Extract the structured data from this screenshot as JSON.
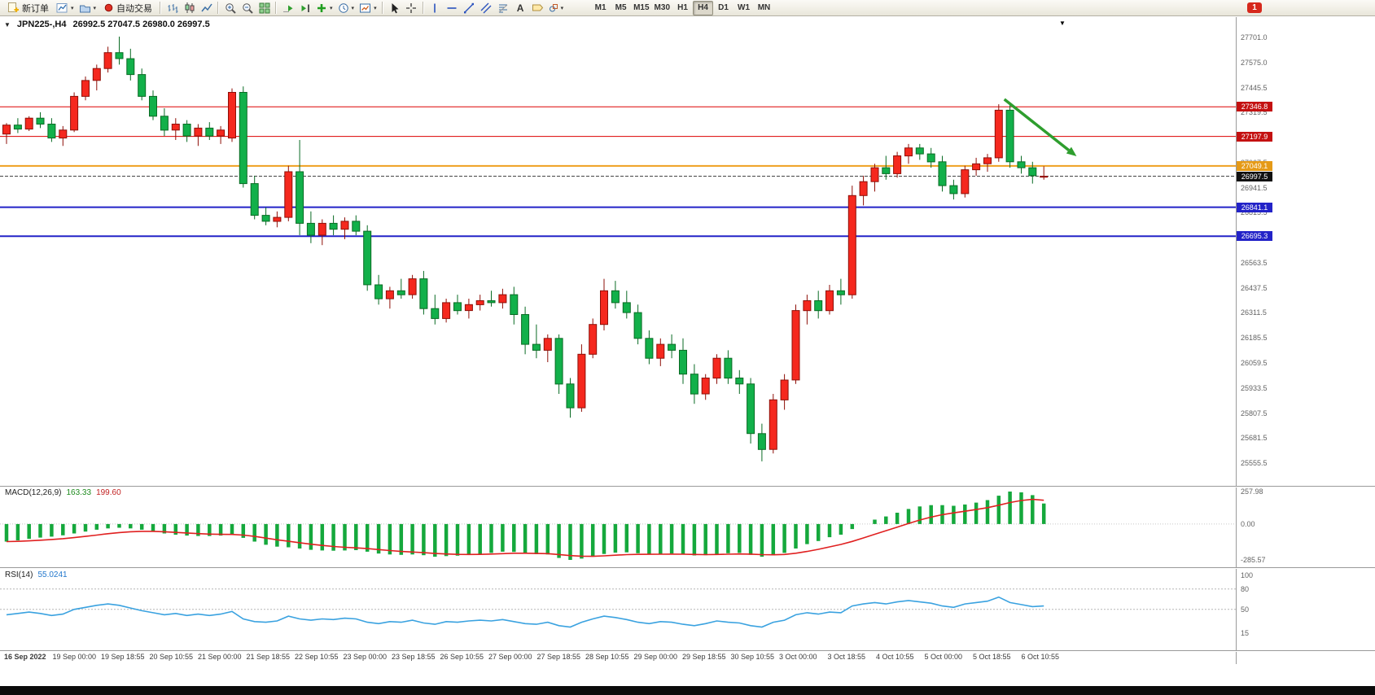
{
  "toolbar": {
    "new_order_label": "新订单",
    "auto_trading_label": "自动交易",
    "timeframes": [
      "M1",
      "M5",
      "M15",
      "M30",
      "H1",
      "H4",
      "D1",
      "W1",
      "MN"
    ],
    "active_timeframe": "H4",
    "notification_count": "1",
    "icon_names": [
      "new-order-icon",
      "new-chart-icon",
      "profiles-icon",
      "auto-trading-icon",
      "bar-chart-icon",
      "candlestick-chart-icon",
      "line-chart-icon",
      "zoom-in-icon",
      "zoom-out-icon",
      "tile-windows-icon",
      "auto-scroll-icon",
      "chart-shift-icon",
      "indicators-icon",
      "periods-icon",
      "templates-icon",
      "cursor-icon",
      "crosshair-icon",
      "vertical-line-icon",
      "horizontal-line-icon",
      "trendline-icon",
      "channel-icon",
      "fibonacci-icon",
      "text-icon",
      "label-icon",
      "shapes-icon",
      "notification-icon"
    ]
  },
  "chart": {
    "symbol": "JPN225-,H4",
    "ohlc": "26992.5 27047.5 26980.0 26997.5"
  },
  "chart_data": {
    "type": "candlestick",
    "symbol": "JPN225-",
    "timeframe": "H4",
    "ylim": [
      25555.5,
      27701.0
    ],
    "y_tick_labels": [
      "27701.0",
      "27575.0",
      "27445.5",
      "27319.5",
      "27193.5",
      "27067.5",
      "26941.5",
      "26815.5",
      "26689.5",
      "26563.5",
      "26437.5",
      "26311.5",
      "26185.5",
      "26059.5",
      "25933.5",
      "25807.5",
      "25681.5",
      "25555.5"
    ],
    "x_tick_labels": [
      "16 Sep 2022",
      "19 Sep 00:00",
      "19 Sep 18:55",
      "20 Sep 10:55",
      "21 Sep 00:00",
      "21 Sep 18:55",
      "22 Sep 10:55",
      "23 Sep 00:00",
      "23 Sep 18:55",
      "26 Sep 10:55",
      "27 Sep 00:00",
      "27 Sep 18:55",
      "28 Sep 10:55",
      "29 Sep 00:00",
      "29 Sep 18:55",
      "30 Sep 10:55",
      "3 Oct 00:00",
      "3 Oct 18:55",
      "4 Oct 10:55",
      "5 Oct 00:00",
      "5 Oct 18:55",
      "6 Oct 10:55"
    ],
    "candles": [
      [
        27210,
        27265,
        27160,
        27255
      ],
      [
        27255,
        27290,
        27215,
        27235
      ],
      [
        27235,
        27300,
        27225,
        27290
      ],
      [
        27290,
        27320,
        27240,
        27260
      ],
      [
        27260,
        27290,
        27170,
        27190
      ],
      [
        27190,
        27250,
        27150,
        27230
      ],
      [
        27230,
        27420,
        27220,
        27400
      ],
      [
        27400,
        27500,
        27380,
        27480
      ],
      [
        27480,
        27560,
        27430,
        27540
      ],
      [
        27540,
        27650,
        27520,
        27620
      ],
      [
        27620,
        27701,
        27560,
        27590
      ],
      [
        27590,
        27640,
        27480,
        27510
      ],
      [
        27510,
        27540,
        27380,
        27400
      ],
      [
        27400,
        27430,
        27280,
        27300
      ],
      [
        27300,
        27340,
        27200,
        27230
      ],
      [
        27230,
        27290,
        27180,
        27260
      ],
      [
        27260,
        27280,
        27170,
        27200
      ],
      [
        27200,
        27260,
        27150,
        27240
      ],
      [
        27240,
        27270,
        27180,
        27200
      ],
      [
        27200,
        27250,
        27160,
        27230
      ],
      [
        27190,
        27440,
        27170,
        27420
      ],
      [
        27420,
        27450,
        26940,
        26960
      ],
      [
        26960,
        27000,
        26780,
        26800
      ],
      [
        26800,
        26840,
        26750,
        26770
      ],
      [
        26770,
        26820,
        26740,
        26790
      ],
      [
        26790,
        27050,
        26770,
        27020
      ],
      [
        27020,
        27180,
        26700,
        26760
      ],
      [
        26760,
        26820,
        26660,
        26700
      ],
      [
        26700,
        26780,
        26650,
        26760
      ],
      [
        26760,
        26800,
        26700,
        26730
      ],
      [
        26730,
        26790,
        26680,
        26770
      ],
      [
        26770,
        26800,
        26700,
        26720
      ],
      [
        26720,
        26750,
        26420,
        26450
      ],
      [
        26450,
        26500,
        26350,
        26380
      ],
      [
        26380,
        26440,
        26330,
        26420
      ],
      [
        26420,
        26480,
        26380,
        26400
      ],
      [
        26400,
        26500,
        26380,
        26480
      ],
      [
        26480,
        26520,
        26300,
        26330
      ],
      [
        26330,
        26400,
        26250,
        26280
      ],
      [
        26280,
        26380,
        26260,
        26360
      ],
      [
        26360,
        26400,
        26300,
        26320
      ],
      [
        26320,
        26380,
        26280,
        26350
      ],
      [
        26350,
        26400,
        26320,
        26370
      ],
      [
        26370,
        26420,
        26340,
        26360
      ],
      [
        26360,
        26430,
        26330,
        26400
      ],
      [
        26400,
        26440,
        26250,
        26300
      ],
      [
        26300,
        26340,
        26100,
        26150
      ],
      [
        26150,
        26250,
        26080,
        26120
      ],
      [
        26120,
        26200,
        26060,
        26180
      ],
      [
        26180,
        26200,
        25900,
        25950
      ],
      [
        25950,
        25980,
        25780,
        25830
      ],
      [
        25830,
        26150,
        25810,
        26100
      ],
      [
        26100,
        26280,
        26080,
        26250
      ],
      [
        26250,
        26480,
        26220,
        26420
      ],
      [
        26420,
        26470,
        26330,
        26360
      ],
      [
        26360,
        26420,
        26280,
        26310
      ],
      [
        26310,
        26350,
        26150,
        26180
      ],
      [
        26180,
        26220,
        26050,
        26080
      ],
      [
        26080,
        26180,
        26040,
        26150
      ],
      [
        26150,
        26200,
        26080,
        26120
      ],
      [
        26120,
        26180,
        25950,
        26000
      ],
      [
        26000,
        26050,
        25850,
        25900
      ],
      [
        25900,
        26000,
        25870,
        25980
      ],
      [
        25980,
        26100,
        25950,
        26080
      ],
      [
        26080,
        26120,
        25950,
        25980
      ],
      [
        25980,
        26020,
        25900,
        25950
      ],
      [
        25950,
        25980,
        25650,
        25700
      ],
      [
        25700,
        25750,
        25560,
        25620
      ],
      [
        25620,
        25900,
        25600,
        25870
      ],
      [
        25870,
        26000,
        25820,
        25970
      ],
      [
        25970,
        26350,
        25950,
        26320
      ],
      [
        26320,
        26400,
        26250,
        26370
      ],
      [
        26370,
        26420,
        26280,
        26320
      ],
      [
        26320,
        26450,
        26300,
        26420
      ],
      [
        26420,
        26480,
        26350,
        26400
      ],
      [
        26400,
        26950,
        26380,
        26900
      ],
      [
        26900,
        27000,
        26850,
        26970
      ],
      [
        26970,
        27060,
        26920,
        27040
      ],
      [
        27040,
        27100,
        26980,
        27010
      ],
      [
        27010,
        27120,
        26990,
        27100
      ],
      [
        27100,
        27160,
        27060,
        27140
      ],
      [
        27140,
        27160,
        27080,
        27110
      ],
      [
        27110,
        27140,
        27040,
        27070
      ],
      [
        27070,
        27100,
        26920,
        26950
      ],
      [
        26950,
        26980,
        26880,
        26910
      ],
      [
        26910,
        27050,
        26890,
        27030
      ],
      [
        27030,
        27090,
        27000,
        27060
      ],
      [
        27060,
        27110,
        27020,
        27090
      ],
      [
        27090,
        27360,
        27070,
        27330
      ],
      [
        27330,
        27370,
        27040,
        27070
      ],
      [
        27070,
        27100,
        27010,
        27040
      ],
      [
        27040,
        27070,
        26960,
        27000
      ],
      [
        26992.5,
        27047.5,
        26980.0,
        26997.5
      ]
    ],
    "levels": [
      {
        "label": "27346.8",
        "price": 27346.8,
        "color": "#dd0000",
        "tag_bg": "#c41111",
        "width": 1
      },
      {
        "label": "27197.9",
        "price": 27197.9,
        "color": "#dd0000",
        "tag_bg": "#c41111",
        "width": 1
      },
      {
        "label": "27049.1",
        "price": 27049.1,
        "color": "#efa021",
        "tag_bg": "#e59a17",
        "width": 2
      },
      {
        "label": "26841.1",
        "price": 26841.1,
        "color": "#2323c8",
        "tag_bg": "#2323c8",
        "width": 2
      },
      {
        "label": "26695.3",
        "price": 26695.3,
        "color": "#2323c8",
        "tag_bg": "#2323c8",
        "width": 2
      }
    ],
    "current_price": {
      "value": "26997.5",
      "price": 26997.5,
      "color": "#444444",
      "tag_bg": "#111111"
    },
    "indicators": {
      "macd": {
        "label": "MACD(12,26,9)",
        "params": [
          12,
          26,
          9
        ],
        "value_main": "163.33",
        "value_signal": "199.60",
        "axis_labels": [
          "257.98",
          "0.00",
          "-285.57"
        ],
        "axis_values": [
          257.98,
          0,
          -285.57
        ],
        "histogram": [
          -140,
          -130,
          -118,
          -108,
          -100,
          -90,
          -75,
          -60,
          -45,
          -35,
          -30,
          -35,
          -45,
          -60,
          -75,
          -85,
          -92,
          -95,
          -95,
          -92,
          -85,
          -110,
          -140,
          -165,
          -180,
          -185,
          -195,
          -205,
          -210,
          -212,
          -210,
          -208,
          -220,
          -235,
          -242,
          -245,
          -242,
          -248,
          -260,
          -255,
          -252,
          -246,
          -238,
          -230,
          -220,
          -222,
          -232,
          -240,
          -242,
          -270,
          -285.57,
          -275,
          -260,
          -238,
          -228,
          -225,
          -232,
          -240,
          -238,
          -235,
          -242,
          -250,
          -248,
          -238,
          -232,
          -230,
          -245,
          -260,
          -250,
          -230,
          -195,
          -160,
          -135,
          -105,
          -85,
          -40,
          0,
          35,
          60,
          90,
          120,
          140,
          150,
          150,
          145,
          155,
          170,
          190,
          225,
          257.98,
          252,
          230,
          163.33
        ]
      },
      "rsi": {
        "label": "RSI(14)",
        "period": 14,
        "value": "55.0241",
        "axis_labels": [
          "100",
          "80",
          "50",
          "15"
        ],
        "axis_values": [
          100,
          80,
          50,
          15
        ],
        "level_lines": [
          80,
          50
        ],
        "values": [
          42,
          44,
          46,
          44,
          41,
          43,
          50,
          53,
          56,
          58,
          56,
          52,
          48,
          45,
          42,
          44,
          41,
          43,
          41,
          43,
          47,
          36,
          32,
          31,
          33,
          40,
          36,
          34,
          36,
          35,
          37,
          36,
          31,
          29,
          32,
          31,
          34,
          30,
          28,
          32,
          31,
          33,
          34,
          33,
          35,
          32,
          29,
          28,
          31,
          26,
          24,
          31,
          36,
          40,
          38,
          35,
          31,
          29,
          32,
          31,
          28,
          26,
          29,
          33,
          31,
          30,
          26,
          24,
          31,
          34,
          42,
          45,
          43,
          46,
          45,
          55,
          58,
          60,
          58,
          61,
          63,
          61,
          59,
          55,
          53,
          58,
          60,
          62,
          68,
          60,
          57,
          54,
          55.02
        ]
      }
    },
    "annotations": {
      "trend_arrow": {
        "from_index": 88.5,
        "from_price": 27385,
        "to_index": 94.9,
        "to_price": 27098,
        "color": "#2e9e2e"
      }
    },
    "colors": {
      "bull": "#f5281e",
      "bull_stroke": "#8e0f08",
      "bear": "#12b04a",
      "bear_stroke": "#0a6b24",
      "macd_histogram": "#15a83c",
      "macd_signal": "#e02020",
      "rsi_line": "#3aa2e0"
    }
  }
}
